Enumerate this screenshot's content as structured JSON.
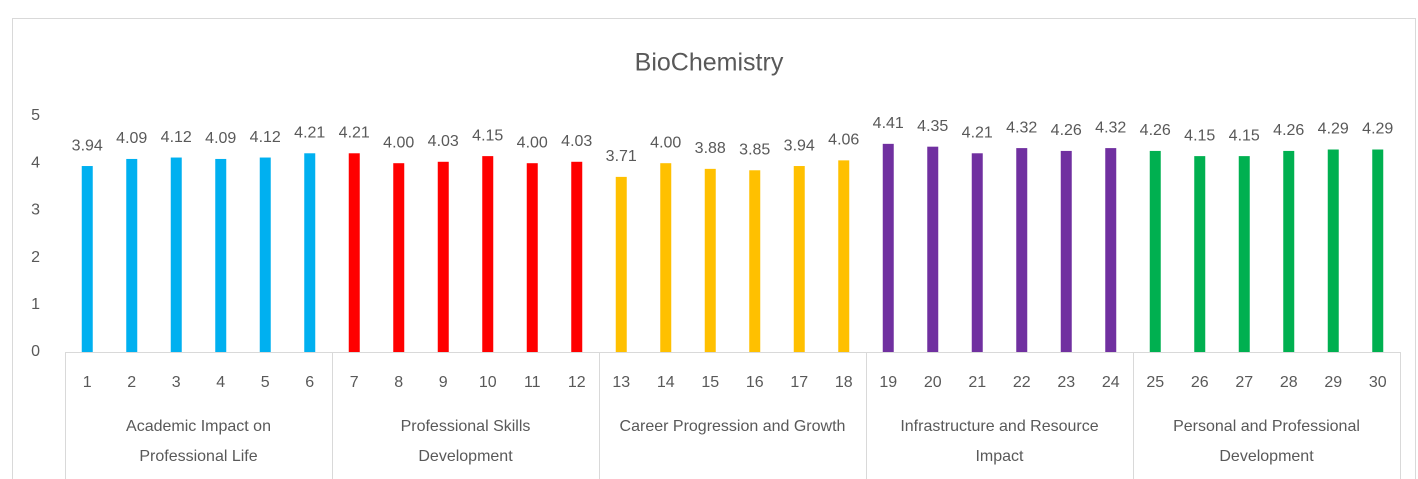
{
  "chart_data": {
    "type": "bar",
    "title": "BioChemistry",
    "ylim": [
      0,
      5
    ],
    "yticks": [
      0,
      1,
      2,
      3,
      4,
      5
    ],
    "grid": false,
    "series": [
      {
        "name": "Academic Impact on Professional Life",
        "color": "#00b0f0",
        "categories": [
          "1",
          "2",
          "3",
          "4",
          "5",
          "6"
        ],
        "values": [
          3.94,
          4.09,
          4.12,
          4.09,
          4.12,
          4.21
        ],
        "value_labels": [
          "3.94",
          "4.09",
          "4.12",
          "4.09",
          "4.12",
          "4.21"
        ]
      },
      {
        "name": "Professional Skills Development",
        "color": "#ff0000",
        "categories": [
          "7",
          "8",
          "9",
          "10",
          "11",
          "12"
        ],
        "values": [
          4.21,
          4.0,
          4.03,
          4.15,
          4.0,
          4.03
        ],
        "value_labels": [
          "4.21",
          "4.00",
          "4.03",
          "4.15",
          "4.00",
          "4.03"
        ]
      },
      {
        "name": "Career Progression and Growth",
        "color": "#ffc000",
        "categories": [
          "13",
          "14",
          "15",
          "16",
          "17",
          "18"
        ],
        "values": [
          3.71,
          4.0,
          3.88,
          3.85,
          3.94,
          4.06
        ],
        "value_labels": [
          "3.71",
          "4.00",
          "3.88",
          "3.85",
          "3.94",
          "4.06"
        ]
      },
      {
        "name": "Infrastructure and Resource Impact",
        "color": "#7030a0",
        "categories": [
          "19",
          "20",
          "21",
          "22",
          "23",
          "24"
        ],
        "values": [
          4.41,
          4.35,
          4.21,
          4.32,
          4.26,
          4.32
        ],
        "value_labels": [
          "4.41",
          "4.35",
          "4.21",
          "4.32",
          "4.26",
          "4.32"
        ]
      },
      {
        "name": "Personal and Professional Development",
        "color": "#00b050",
        "categories": [
          "25",
          "26",
          "27",
          "28",
          "29",
          "30"
        ],
        "values": [
          4.26,
          4.15,
          4.15,
          4.26,
          4.29,
          4.29
        ],
        "value_labels": [
          "4.26",
          "4.15",
          "4.15",
          "4.26",
          "4.29",
          "4.29"
        ]
      }
    ]
  }
}
